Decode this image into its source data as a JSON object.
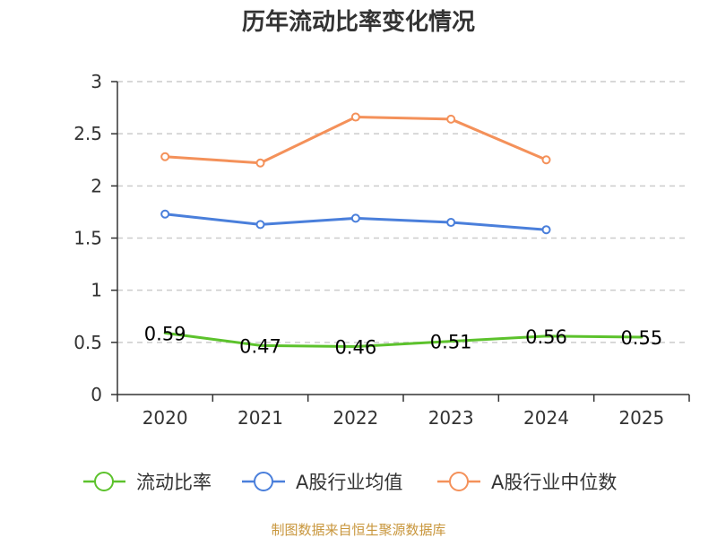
{
  "chart_data": {
    "type": "line",
    "title": "历年流动比率变化情况",
    "categories": [
      "2020",
      "2021",
      "2022",
      "2023",
      "2024",
      "2025"
    ],
    "ylim": [
      0,
      3
    ],
    "yticks": [
      "0",
      "0.5",
      "1",
      "1.5",
      "2",
      "2.5",
      "3"
    ],
    "series": [
      {
        "name": "流动比率",
        "color": "#5cc22c",
        "values": [
          0.59,
          0.47,
          0.46,
          0.51,
          0.56,
          0.55
        ],
        "labels": [
          "0.59",
          "0.47",
          "0.46",
          "0.51",
          "0.56",
          "0.55"
        ],
        "show_labels": true,
        "markers": false
      },
      {
        "name": "A股行业均值",
        "color": "#4a7fdb",
        "values": [
          1.73,
          1.63,
          1.69,
          1.65,
          1.58,
          null
        ],
        "show_labels": false,
        "markers": true
      },
      {
        "name": "A股行业中位数",
        "color": "#f4915a",
        "values": [
          2.28,
          2.22,
          2.66,
          2.64,
          2.25,
          null
        ],
        "show_labels": false,
        "markers": true
      }
    ],
    "grid": true,
    "legend": "bottom",
    "source": "制图数据来自恒生聚源数据库"
  }
}
